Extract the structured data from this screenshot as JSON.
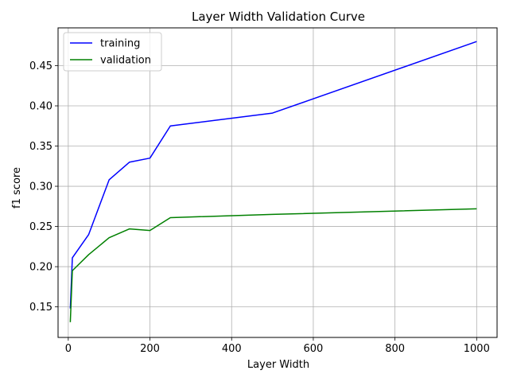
{
  "chart_data": {
    "type": "line",
    "title": "Layer Width Validation Curve",
    "xlabel": "Layer Width",
    "ylabel": "f1 score",
    "xlim": [
      -25,
      1050
    ],
    "ylim": [
      0.112,
      0.497
    ],
    "xticks": [
      0,
      200,
      400,
      600,
      800,
      1000
    ],
    "xtick_labels": [
      "0",
      "200",
      "400",
      "600",
      "800",
      "1000"
    ],
    "yticks": [
      0.15,
      0.2,
      0.25,
      0.3,
      0.35,
      0.4,
      0.45
    ],
    "ytick_labels": [
      "0.15",
      "0.20",
      "0.25",
      "0.30",
      "0.35",
      "0.40",
      "0.45"
    ],
    "grid": true,
    "legend_position": "top-left",
    "series": [
      {
        "name": "training",
        "color": "#0000ff",
        "x": [
          5,
          10,
          50,
          100,
          150,
          200,
          250,
          500,
          1000
        ],
        "y": [
          0.148,
          0.211,
          0.24,
          0.308,
          0.33,
          0.335,
          0.375,
          0.391,
          0.48
        ]
      },
      {
        "name": "validation",
        "color": "#008000",
        "x": [
          5,
          10,
          50,
          100,
          150,
          200,
          250,
          500,
          1000
        ],
        "y": [
          0.131,
          0.195,
          0.215,
          0.236,
          0.247,
          0.245,
          0.261,
          0.265,
          0.272
        ]
      }
    ]
  }
}
